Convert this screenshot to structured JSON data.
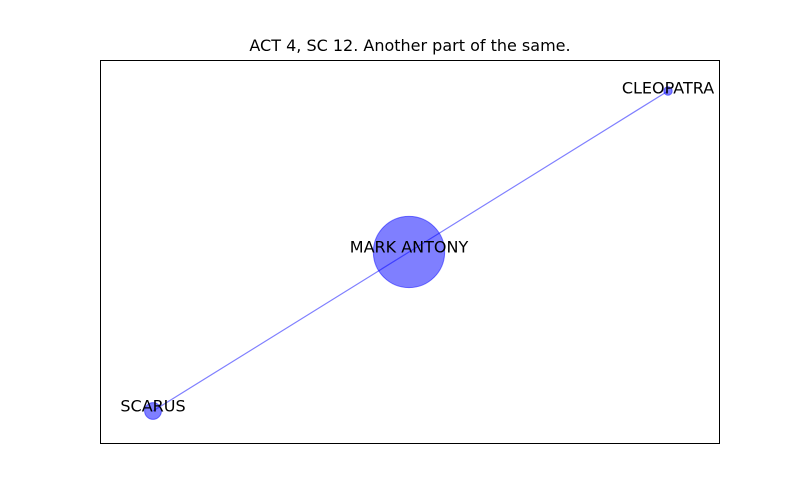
{
  "title": "ACT 4, SC 12. Another part of the same.",
  "colors": {
    "node": "#0000ff",
    "edge": "#0000ff"
  },
  "nodes": [
    {
      "id": "cleopatra",
      "label": "CLEOPATRA",
      "size": 1
    },
    {
      "id": "mark-antony",
      "label": "MARK ANTONY",
      "size": 72
    },
    {
      "id": "scarus",
      "label": "SCARUS",
      "size": 4
    }
  ],
  "edges": [
    {
      "source": "cleopatra",
      "target": "mark-antony"
    },
    {
      "source": "mark-antony",
      "target": "scarus"
    }
  ]
}
